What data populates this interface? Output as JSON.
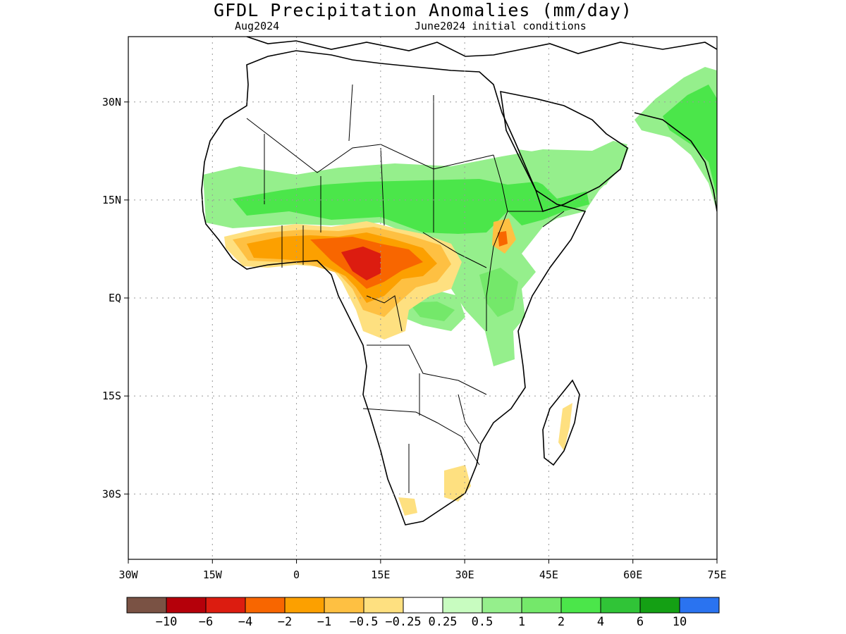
{
  "title": "GFDL Precipitation Anomalies (mm/day)",
  "subtitle_left": "Aug2024",
  "subtitle_right": "June2024 initial conditions",
  "map": {
    "projection": "lat-lon",
    "lon_range": [
      -30,
      75
    ],
    "lat_range": [
      -40,
      40
    ],
    "lon_ticks": [
      "30W",
      "15W",
      "0",
      "15E",
      "30E",
      "45E",
      "60E",
      "75E"
    ],
    "lat_ticks": [
      "30N",
      "15N",
      "EQ",
      "15S",
      "30S"
    ],
    "gridlines": "dotted"
  },
  "colorbar": {
    "colors": [
      "#7a5244",
      "#b5000a",
      "#dc1c10",
      "#f86600",
      "#fca000",
      "#fec042",
      "#fee080",
      "#ffffff",
      "#c8fcc0",
      "#95ef8c",
      "#74e86a",
      "#4be64a",
      "#30c437",
      "#14a014",
      "#2a73f0"
    ],
    "labels": [
      "−10",
      "−6",
      "−4",
      "−2",
      "−1",
      "−0.5",
      "−0.25",
      "0.25",
      "0.5",
      "1",
      "2",
      "4",
      "6",
      "10"
    ]
  }
}
